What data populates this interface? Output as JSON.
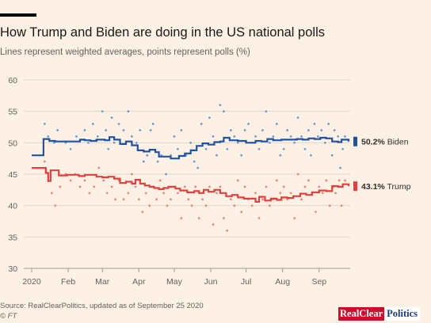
{
  "header": {
    "title": "How Trump and Biden are doing in the US national polls",
    "subtitle": "Lines represent weighted averages, points represent polls (%)"
  },
  "footer": {
    "source": "Source: RealClearPolitics, updated as of September 25 2020",
    "copyright": "© FT",
    "logo_part1": "RealClear",
    "logo_part2": "Politics"
  },
  "colors": {
    "biden": "#1f52a3",
    "trump": "#e0413f",
    "biden_points": "#4f86c6",
    "trump_points": "#ef6b63",
    "grid": "#e2d6ca",
    "background": "#fdf1e5"
  },
  "chart_data": {
    "type": "line",
    "title": "How Trump and Biden are doing in the US national polls",
    "subtitle": "Lines represent weighted averages, points represent polls (%)",
    "x_tick_labels": [
      "2020",
      "Feb",
      "Mar",
      "Apr",
      "May",
      "Jun",
      "Jul",
      "Aug",
      "Sep"
    ],
    "x_tick_days": [
      0,
      31,
      60,
      91,
      121,
      152,
      182,
      213,
      244
    ],
    "xlim_days": [
      0,
      269
    ],
    "x_axis_note": "values are day of year 2020 (0 = Jan 1)",
    "y_ticks": [
      30,
      35,
      40,
      45,
      50,
      55,
      60
    ],
    "ylim": [
      30,
      60
    ],
    "grid": true,
    "series": [
      {
        "name": "Biden",
        "label": "50.2% Biden",
        "final_value": 50.2,
        "avg": [
          [
            0,
            48
          ],
          [
            9,
            48
          ],
          [
            10,
            50.6
          ],
          [
            15,
            50.3
          ],
          [
            20,
            50.2
          ],
          [
            40,
            50.2
          ],
          [
            41,
            50.5
          ],
          [
            45,
            50.4
          ],
          [
            50,
            50.3
          ],
          [
            55,
            50.5
          ],
          [
            62,
            50.4
          ],
          [
            66,
            50.9
          ],
          [
            70,
            50.5
          ],
          [
            75,
            49.8
          ],
          [
            80,
            50.2
          ],
          [
            85,
            49.6
          ],
          [
            90,
            48.8
          ],
          [
            95,
            48.6
          ],
          [
            100,
            48.9
          ],
          [
            105,
            48.5
          ],
          [
            108,
            47.8
          ],
          [
            112,
            47.8
          ],
          [
            118,
            47.5
          ],
          [
            125,
            47.9
          ],
          [
            130,
            48.3
          ],
          [
            135,
            48.8
          ],
          [
            140,
            49.5
          ],
          [
            145,
            49.9
          ],
          [
            150,
            49.7
          ],
          [
            155,
            50.1
          ],
          [
            160,
            50.2
          ],
          [
            163,
            50.8
          ],
          [
            168,
            50.4
          ],
          [
            175,
            50.3
          ],
          [
            182,
            50.0
          ],
          [
            190,
            50.3
          ],
          [
            195,
            50.2
          ],
          [
            200,
            50.6
          ],
          [
            205,
            50.4
          ],
          [
            212,
            50.5
          ],
          [
            218,
            50.5
          ],
          [
            225,
            50.6
          ],
          [
            230,
            50.5
          ],
          [
            235,
            50.7
          ],
          [
            240,
            50.6
          ],
          [
            245,
            50.8
          ],
          [
            250,
            50.7
          ],
          [
            255,
            50.2
          ],
          [
            260,
            50.1
          ],
          [
            263,
            50.5
          ],
          [
            269,
            50.2
          ]
        ],
        "polls": [
          [
            11,
            53
          ],
          [
            14,
            51
          ],
          [
            19,
            50
          ],
          [
            22,
            52
          ],
          [
            29,
            50
          ],
          [
            33,
            49
          ],
          [
            38,
            51
          ],
          [
            45,
            52
          ],
          [
            48,
            50
          ],
          [
            52,
            53
          ],
          [
            56,
            51
          ],
          [
            60,
            55
          ],
          [
            63,
            52
          ],
          [
            65,
            49
          ],
          [
            68,
            54
          ],
          [
            70,
            50
          ],
          [
            74,
            53
          ],
          [
            78,
            52
          ],
          [
            82,
            55
          ],
          [
            85,
            51
          ],
          [
            89,
            50
          ],
          [
            92,
            52
          ],
          [
            95,
            47
          ],
          [
            98,
            48
          ],
          [
            101,
            52
          ],
          [
            103,
            53
          ],
          [
            107,
            47
          ],
          [
            110,
            48
          ],
          [
            114,
            45
          ],
          [
            118,
            48
          ],
          [
            121,
            51
          ],
          [
            124,
            49
          ],
          [
            127,
            52
          ],
          [
            131,
            48
          ],
          [
            135,
            50
          ],
          [
            138,
            47
          ],
          [
            141,
            46
          ],
          [
            144,
            53
          ],
          [
            148,
            49
          ],
          [
            151,
            54
          ],
          [
            154,
            51
          ],
          [
            157,
            48
          ],
          [
            160,
            56
          ],
          [
            163,
            55
          ],
          [
            166,
            49
          ],
          [
            169,
            52
          ],
          [
            172,
            51
          ],
          [
            175,
            50
          ],
          [
            178,
            48
          ],
          [
            181,
            52
          ],
          [
            184,
            53
          ],
          [
            187,
            50
          ],
          [
            190,
            51
          ],
          [
            193,
            49
          ],
          [
            196,
            52
          ],
          [
            199,
            55
          ],
          [
            202,
            50
          ],
          [
            205,
            51
          ],
          [
            208,
            53
          ],
          [
            211,
            48
          ],
          [
            214,
            49
          ],
          [
            217,
            52
          ],
          [
            220,
            51
          ],
          [
            223,
            50
          ],
          [
            226,
            54
          ],
          [
            229,
            51
          ],
          [
            232,
            49
          ],
          [
            235,
            52
          ],
          [
            237,
            48
          ],
          [
            240,
            53
          ],
          [
            243,
            51
          ],
          [
            246,
            52
          ],
          [
            249,
            50
          ],
          [
            252,
            53
          ],
          [
            255,
            48
          ],
          [
            257,
            52
          ],
          [
            260,
            51
          ],
          [
            262,
            46
          ],
          [
            264,
            49
          ],
          [
            266,
            51
          ]
        ]
      },
      {
        "name": "Trump",
        "label": "43.1% Trump",
        "final_value": 43.1,
        "avg": [
          [
            0,
            46
          ],
          [
            10,
            46
          ],
          [
            12,
            45.2
          ],
          [
            14,
            43.9
          ],
          [
            16,
            45.6
          ],
          [
            22,
            45.6
          ],
          [
            23,
            44.8
          ],
          [
            30,
            44.9
          ],
          [
            40,
            44.7
          ],
          [
            45,
            44.9
          ],
          [
            55,
            44.6
          ],
          [
            60,
            44.5
          ],
          [
            65,
            44.6
          ],
          [
            70,
            44.3
          ],
          [
            75,
            43.6
          ],
          [
            80,
            43.8
          ],
          [
            85,
            43.5
          ],
          [
            88,
            44.1
          ],
          [
            92,
            43.5
          ],
          [
            96,
            43.2
          ],
          [
            100,
            43.0
          ],
          [
            104,
            42.8
          ],
          [
            108,
            42.6
          ],
          [
            112,
            42.8
          ],
          [
            116,
            43.0
          ],
          [
            122,
            42.7
          ],
          [
            126,
            42.4
          ],
          [
            132,
            42.1
          ],
          [
            138,
            42.3
          ],
          [
            142,
            42.0
          ],
          [
            146,
            42.5
          ],
          [
            150,
            42.2
          ],
          [
            155,
            42.5
          ],
          [
            160,
            42.0
          ],
          [
            165,
            41.5
          ],
          [
            170,
            41.7
          ],
          [
            175,
            41.3
          ],
          [
            180,
            41.1
          ],
          [
            186,
            41.1
          ],
          [
            190,
            40.6
          ],
          [
            193,
            41.4
          ],
          [
            198,
            40.8
          ],
          [
            203,
            41.1
          ],
          [
            208,
            40.9
          ],
          [
            212,
            41.3
          ],
          [
            217,
            41.2
          ],
          [
            222,
            41.5
          ],
          [
            228,
            41.9
          ],
          [
            233,
            41.7
          ],
          [
            238,
            42.1
          ],
          [
            244,
            42.4
          ],
          [
            250,
            42.3
          ],
          [
            255,
            43.1
          ],
          [
            260,
            43.0
          ],
          [
            264,
            43.4
          ],
          [
            269,
            43.1
          ]
        ],
        "polls": [
          [
            11,
            47
          ],
          [
            14,
            44
          ],
          [
            17,
            42
          ],
          [
            20,
            40
          ],
          [
            24,
            43
          ],
          [
            29,
            45
          ],
          [
            33,
            44
          ],
          [
            37,
            45
          ],
          [
            41,
            43
          ],
          [
            45,
            44
          ],
          [
            49,
            42
          ],
          [
            53,
            43
          ],
          [
            57,
            46
          ],
          [
            61,
            44
          ],
          [
            64,
            42
          ],
          [
            68,
            43
          ],
          [
            71,
            41
          ],
          [
            74,
            44
          ],
          [
            78,
            41
          ],
          [
            82,
            42
          ],
          [
            85,
            45
          ],
          [
            88,
            43
          ],
          [
            91,
            41
          ],
          [
            94,
            39
          ],
          [
            97,
            42
          ],
          [
            100,
            40
          ],
          [
            103,
            43
          ],
          [
            106,
            41
          ],
          [
            109,
            44
          ],
          [
            112,
            42
          ],
          [
            115,
            40
          ],
          [
            118,
            41
          ],
          [
            121,
            43
          ],
          [
            124,
            42
          ],
          [
            127,
            38
          ],
          [
            130,
            43
          ],
          [
            133,
            41
          ],
          [
            136,
            40
          ],
          [
            139,
            43
          ],
          [
            142,
            38
          ],
          [
            145,
            41
          ],
          [
            148,
            40
          ],
          [
            151,
            43
          ],
          [
            154,
            37
          ],
          [
            157,
            42
          ],
          [
            160,
            43
          ],
          [
            163,
            38
          ],
          [
            166,
            36
          ],
          [
            169,
            41
          ],
          [
            172,
            40
          ],
          [
            175,
            44
          ],
          [
            178,
            39
          ],
          [
            181,
            43
          ],
          [
            184,
            41
          ],
          [
            187,
            40
          ],
          [
            190,
            42
          ],
          [
            193,
            38
          ],
          [
            196,
            41
          ],
          [
            199,
            43
          ],
          [
            202,
            40
          ],
          [
            205,
            41
          ],
          [
            208,
            44
          ],
          [
            211,
            42
          ],
          [
            214,
            43
          ],
          [
            217,
            41
          ],
          [
            220,
            42
          ],
          [
            223,
            38
          ],
          [
            226,
            45
          ],
          [
            229,
            41
          ],
          [
            232,
            43
          ],
          [
            235,
            44
          ],
          [
            238,
            42
          ],
          [
            241,
            39
          ],
          [
            244,
            43
          ],
          [
            247,
            42
          ],
          [
            250,
            44
          ],
          [
            253,
            40
          ],
          [
            256,
            43
          ],
          [
            258,
            42
          ],
          [
            261,
            44
          ],
          [
            263,
            40
          ],
          [
            266,
            44
          ]
        ]
      }
    ]
  }
}
